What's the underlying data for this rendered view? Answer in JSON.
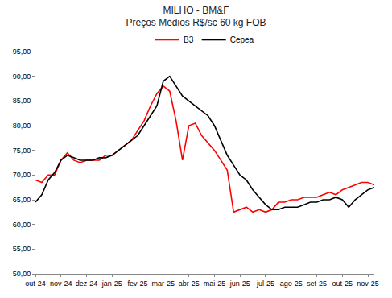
{
  "chart_data": {
    "type": "line",
    "title": "MILHO - BM&F",
    "subtitle": "Preços Médios R$/sc 60 kg FOB",
    "categories": [
      "out-24",
      null,
      null,
      null,
      "nov-24",
      null,
      null,
      null,
      "dez-24",
      null,
      null,
      null,
      "jan-25",
      null,
      null,
      null,
      "fev-25",
      null,
      null,
      null,
      "mar-25",
      null,
      null,
      null,
      "abr-25",
      null,
      null,
      null,
      "mai-25",
      null,
      null,
      null,
      "jun-25",
      null,
      null,
      null,
      "jul-25",
      null,
      null,
      null,
      "ago-25",
      null,
      null,
      null,
      "set-25",
      null,
      null,
      null,
      "out-25",
      null,
      null,
      null,
      "nov-25",
      null
    ],
    "series": [
      {
        "name": "B3",
        "color": "#ff0000",
        "line_style": "solid",
        "values": [
          69,
          68.5,
          70,
          70,
          73,
          74.5,
          73,
          72.5,
          73,
          73,
          73,
          74,
          74,
          75,
          76,
          77,
          79,
          81,
          84,
          86.5,
          88,
          87,
          81,
          73,
          80,
          80.5,
          78,
          76.5,
          75,
          73,
          71,
          62.5,
          63,
          63.5,
          62.5,
          63,
          62.5,
          63,
          64.5,
          64.5,
          65,
          65,
          65.5,
          65.5,
          65.5,
          66,
          66.5,
          66,
          67,
          67.5,
          68,
          68.5,
          68.5,
          68
        ]
      },
      {
        "name": "Cepea",
        "color": "#000000",
        "line_style": "solid",
        "values": [
          64.5,
          66,
          69,
          70.5,
          73,
          74,
          73.5,
          73,
          73,
          73,
          73.5,
          73.5,
          74,
          75,
          76,
          77,
          78,
          80,
          82,
          84,
          89,
          90,
          88,
          86,
          85,
          84,
          83,
          82,
          80,
          77,
          74,
          72,
          70,
          69,
          67,
          65.5,
          64,
          63,
          63,
          63.5,
          63.5,
          63.5,
          64,
          64.5,
          64.5,
          65,
          65,
          65.5,
          65,
          63.5,
          65,
          66,
          67,
          67.5
        ]
      }
    ],
    "ylim": [
      50,
      95
    ],
    "yticks": [
      {
        "value": 50,
        "label": "50,00"
      },
      {
        "value": 55,
        "label": "55,00"
      },
      {
        "value": 60,
        "label": "60,00"
      },
      {
        "value": 65,
        "label": "65,00"
      },
      {
        "value": 70,
        "label": "70,00"
      },
      {
        "value": 75,
        "label": "75,00"
      },
      {
        "value": 80,
        "label": "80,00"
      },
      {
        "value": 85,
        "label": "85,00"
      },
      {
        "value": 90,
        "label": "90,00"
      },
      {
        "value": 95,
        "label": "95,00"
      }
    ],
    "grid": false,
    "legend": "top"
  }
}
